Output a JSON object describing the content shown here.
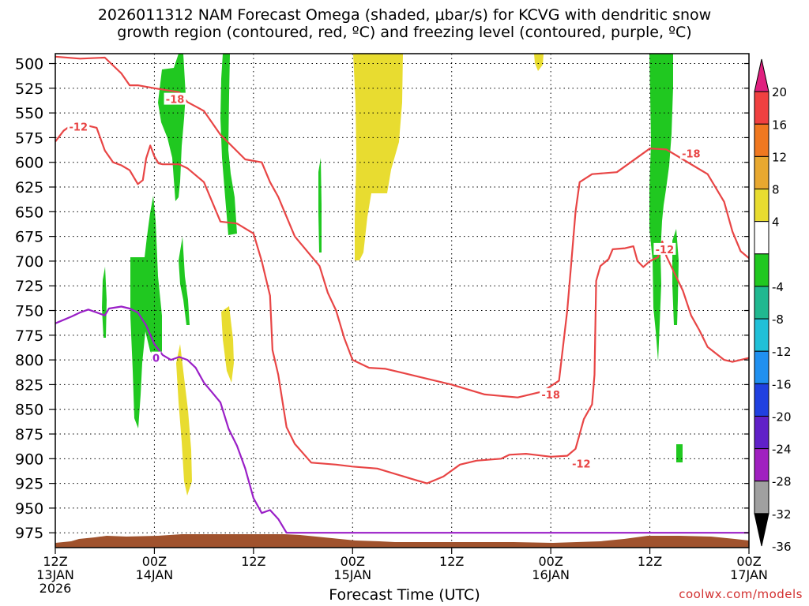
{
  "header": {
    "title_line1": "2026011312 NAM Forecast Omega (shaded, μbar/s) for KCVG with dendritic snow",
    "title_line2": "growth region (contoured, red, ºC) and freezing level (contoured, purple, ºC)"
  },
  "footer": {
    "credit": "coolwx.com/models"
  },
  "chart_data": {
    "type": "contour",
    "xlabel": "Forecast Time (UTC)",
    "x_ticks": [
      {
        "hour": 0,
        "labels": [
          "12Z",
          "13JAN",
          "2026"
        ]
      },
      {
        "hour": 12,
        "labels": [
          "00Z",
          "14JAN"
        ]
      },
      {
        "hour": 24,
        "labels": [
          "12Z"
        ]
      },
      {
        "hour": 36,
        "labels": [
          "00Z",
          "15JAN"
        ]
      },
      {
        "hour": 48,
        "labels": [
          "12Z"
        ]
      },
      {
        "hour": 60,
        "labels": [
          "00Z",
          "16JAN"
        ]
      },
      {
        "hour": 72,
        "labels": [
          "12Z"
        ]
      },
      {
        "hour": 84,
        "labels": [
          "00Z",
          "17JAN"
        ]
      }
    ],
    "xlim_hours": [
      0,
      84
    ],
    "y_ticks": [
      "500",
      "525",
      "550",
      "575",
      "600",
      "625",
      "650",
      "675",
      "700",
      "725",
      "750",
      "775",
      "800",
      "825",
      "850",
      "875",
      "900",
      "925",
      "950",
      "975"
    ],
    "ylim_hpa": [
      490,
      990
    ],
    "y_inverted": true,
    "grid": "dotted",
    "colorbar": {
      "labels": [
        "20",
        "16",
        "12",
        "8",
        "4",
        "-4",
        "-8",
        "-12",
        "-16",
        "-20",
        "-24",
        "-28",
        "-32",
        "-36"
      ],
      "bins": [
        {
          "from": 24,
          "to": 20,
          "color": "#e0207f"
        },
        {
          "from": 20,
          "to": 16,
          "color": "#f04040"
        },
        {
          "from": 16,
          "to": 12,
          "color": "#f07820"
        },
        {
          "from": 12,
          "to": 8,
          "color": "#e8a830"
        },
        {
          "from": 8,
          "to": 4,
          "color": "#e8dc30"
        },
        {
          "from": 4,
          "to": -4,
          "color": "#ffffff"
        },
        {
          "from": -4,
          "to": -8,
          "color": "#20c820"
        },
        {
          "from": -8,
          "to": -12,
          "color": "#20b890"
        },
        {
          "from": -12,
          "to": -16,
          "color": "#20c0d8"
        },
        {
          "from": -16,
          "to": -20,
          "color": "#2090f0"
        },
        {
          "from": -20,
          "to": -24,
          "color": "#2040e0"
        },
        {
          "from": -24,
          "to": -28,
          "color": "#6020c8"
        },
        {
          "from": -28,
          "to": -32,
          "color": "#a020c0"
        },
        {
          "from": -32,
          "to": -36,
          "color": "#a0a0a0"
        },
        {
          "from": -36,
          "to": -40,
          "color": "#000000"
        }
      ]
    },
    "colors": {
      "snow_growth_contour": "#e84545",
      "freezing_contour": "#9a1fc7",
      "terrain": "#a0522d",
      "omega_negative": "#20c820",
      "omega_positive": "#e8dc30"
    },
    "contour_labels": [
      {
        "text": "-18",
        "hour": 14.5,
        "hpa": 536,
        "color": "red"
      },
      {
        "text": "-12",
        "hour": 2.8,
        "hpa": 564,
        "color": "red"
      },
      {
        "text": "-18",
        "hour": 77.0,
        "hpa": 591,
        "color": "red"
      },
      {
        "text": "-12",
        "hour": 73.8,
        "hpa": 688,
        "color": "red"
      },
      {
        "text": "-18",
        "hour": 60.0,
        "hpa": 835,
        "color": "red"
      },
      {
        "text": "-12",
        "hour": 63.7,
        "hpa": 905,
        "color": "red"
      },
      {
        "text": "0",
        "hour": 12.2,
        "hpa": 798,
        "color": "purple"
      }
    ],
    "series": [
      {
        "name": "-18",
        "color": "red",
        "points": [
          [
            0,
            493
          ],
          [
            3,
            495
          ],
          [
            6,
            494
          ],
          [
            8,
            510
          ],
          [
            9,
            522
          ],
          [
            10,
            522
          ],
          [
            12,
            525
          ],
          [
            15,
            529
          ],
          [
            16,
            539
          ],
          [
            18,
            548
          ],
          [
            20,
            572
          ],
          [
            23,
            597
          ],
          [
            25,
            600
          ],
          [
            26,
            620
          ],
          [
            27,
            635
          ],
          [
            29,
            675
          ],
          [
            31,
            695
          ],
          [
            32,
            705
          ],
          [
            33,
            732
          ],
          [
            34,
            750
          ],
          [
            35,
            778
          ],
          [
            36,
            800
          ],
          [
            38,
            808
          ],
          [
            40,
            809
          ],
          [
            44,
            817
          ],
          [
            48,
            825
          ],
          [
            52,
            835
          ],
          [
            56,
            838
          ],
          [
            59,
            832
          ],
          [
            61,
            821
          ],
          [
            62,
            750
          ],
          [
            62.5,
            700
          ],
          [
            63,
            650
          ],
          [
            63.5,
            620
          ],
          [
            65,
            612
          ],
          [
            68,
            610
          ],
          [
            70,
            598
          ],
          [
            72,
            586
          ],
          [
            74,
            587
          ],
          [
            76,
            597
          ],
          [
            79,
            612
          ],
          [
            81,
            640
          ],
          [
            82,
            670
          ],
          [
            83,
            690
          ],
          [
            84,
            697
          ]
        ]
      },
      {
        "name": "-12",
        "color": "red",
        "points": [
          [
            0,
            579
          ],
          [
            1,
            568
          ],
          [
            2,
            562
          ],
          [
            4,
            563
          ],
          [
            5,
            565
          ],
          [
            6,
            588
          ],
          [
            7,
            600
          ],
          [
            8,
            603
          ],
          [
            9,
            608
          ],
          [
            10,
            622
          ],
          [
            10.6,
            618
          ],
          [
            11,
            596
          ],
          [
            11.5,
            583
          ],
          [
            12,
            594
          ],
          [
            12.5,
            601
          ],
          [
            13,
            602
          ],
          [
            15,
            602
          ],
          [
            16,
            606
          ],
          [
            18,
            620
          ],
          [
            20,
            660
          ],
          [
            22,
            662
          ],
          [
            24,
            672
          ],
          [
            25,
            700
          ],
          [
            26,
            735
          ],
          [
            26.3,
            790
          ],
          [
            27,
            815
          ],
          [
            28,
            868
          ],
          [
            29,
            885
          ],
          [
            31,
            904
          ],
          [
            34,
            906
          ],
          [
            36,
            908
          ],
          [
            39,
            910
          ],
          [
            43,
            920
          ],
          [
            45,
            925
          ],
          [
            47,
            918
          ],
          [
            49,
            906
          ],
          [
            51,
            902
          ],
          [
            54,
            900
          ],
          [
            55,
            896
          ],
          [
            57,
            895
          ],
          [
            58,
            896
          ],
          [
            60,
            898
          ],
          [
            62,
            897
          ],
          [
            63,
            890
          ],
          [
            64,
            860
          ],
          [
            65,
            845
          ],
          [
            65.3,
            815
          ],
          [
            65.5,
            720
          ],
          [
            66,
            705
          ],
          [
            67,
            698
          ],
          [
            67.5,
            688
          ],
          [
            69,
            687
          ],
          [
            70,
            685
          ],
          [
            70.5,
            700
          ],
          [
            71.2,
            706
          ],
          [
            72,
            700
          ],
          [
            73,
            696
          ],
          [
            73.5,
            680
          ],
          [
            74,
            695
          ],
          [
            76,
            730
          ],
          [
            77,
            755
          ],
          [
            78,
            770
          ],
          [
            79,
            787
          ],
          [
            81,
            800
          ],
          [
            82,
            802
          ],
          [
            84,
            798
          ]
        ]
      },
      {
        "name": "0",
        "color": "purple",
        "points": [
          [
            0,
            763
          ],
          [
            2,
            756
          ],
          [
            3,
            752
          ],
          [
            4,
            749
          ],
          [
            5,
            752
          ],
          [
            6,
            755
          ],
          [
            6.5,
            748
          ],
          [
            8,
            746
          ],
          [
            9,
            748
          ],
          [
            10,
            752
          ],
          [
            11,
            765
          ],
          [
            12,
            784
          ],
          [
            13,
            795
          ],
          [
            14,
            800
          ],
          [
            15,
            797
          ],
          [
            16,
            800
          ],
          [
            17,
            808
          ],
          [
            18,
            823
          ],
          [
            19,
            833
          ],
          [
            20,
            843
          ],
          [
            21,
            870
          ],
          [
            22,
            887
          ],
          [
            23,
            910
          ],
          [
            24,
            940
          ],
          [
            25,
            955
          ],
          [
            26,
            952
          ],
          [
            27,
            961
          ],
          [
            28,
            975
          ],
          [
            84,
            975
          ]
        ]
      }
    ]
  }
}
